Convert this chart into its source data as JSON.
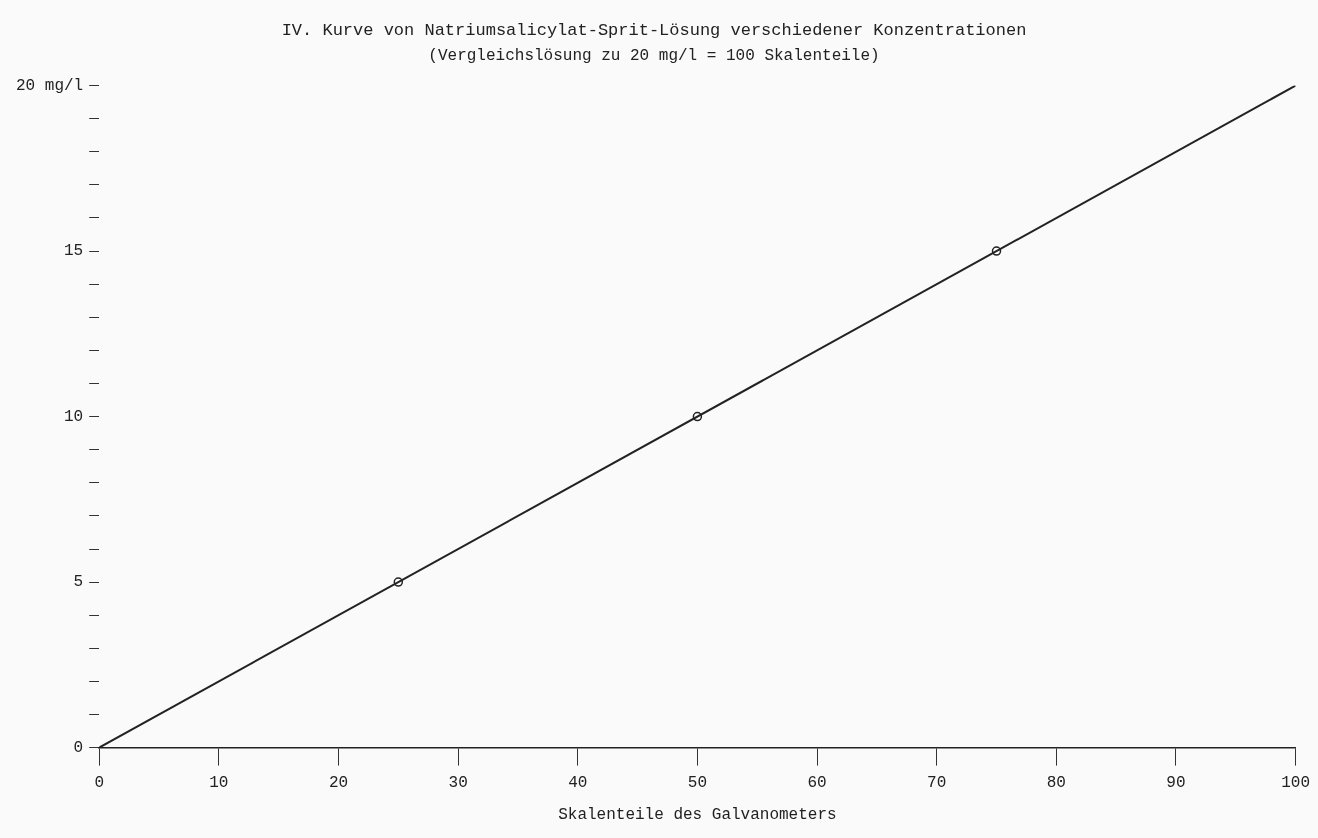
{
  "chart_data": {
    "type": "line",
    "title": "IV. Kurve von Natriumsalicylat-Sprit-Lösung verschiedener Konzentrationen",
    "subtitle": "(Vergleichslösung zu 20 mg/l = 100 Skalenteile)",
    "xlabel": "Skalenteile des Galvanometers",
    "series": [
      {
        "type": "line",
        "x": [
          0,
          100
        ],
        "values": [
          0,
          20
        ],
        "color": "#222222",
        "marker": "none"
      },
      {
        "type": "scatter",
        "x": [
          25,
          50,
          75
        ],
        "values": [
          5,
          10,
          15
        ],
        "color": "#222222",
        "marker": "circle"
      }
    ],
    "xlim": [
      0,
      100
    ],
    "xticks": [
      0,
      10,
      20,
      30,
      40,
      50,
      60,
      70,
      80,
      90,
      100
    ],
    "ylim": [
      0,
      20
    ],
    "yticks": [
      0,
      {
        "value": 1,
        "label": null
      },
      {
        "value": 2,
        "label": null
      },
      {
        "value": 3,
        "label": null
      },
      {
        "value": 4,
        "label": null
      },
      5,
      {
        "value": 6,
        "label": null
      },
      {
        "value": 7,
        "label": null
      },
      {
        "value": 8,
        "label": null
      },
      {
        "value": 9,
        "label": null
      },
      10,
      {
        "value": 11,
        "label": null
      },
      {
        "value": 12,
        "label": null
      },
      {
        "value": 13,
        "label": null
      },
      {
        "value": 14,
        "label": null
      },
      15,
      {
        "value": 16,
        "label": null
      },
      {
        "value": 17,
        "label": null
      },
      {
        "value": 18,
        "label": null
      },
      {
        "value": 19,
        "label": null
      },
      {
        "value": 20,
        "label": "20 mg/l"
      }
    ],
    "grid": false,
    "legend": false
  }
}
